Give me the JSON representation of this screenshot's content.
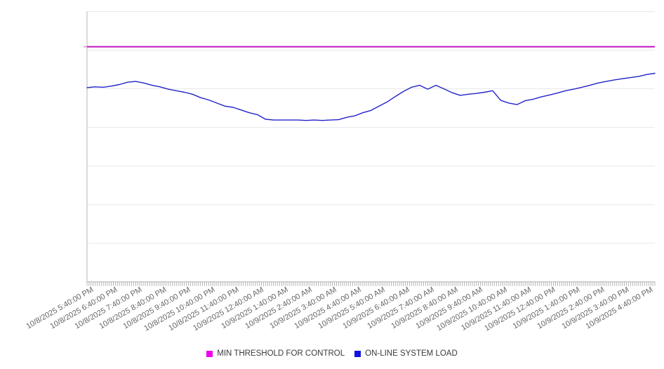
{
  "chart_data": {
    "type": "line",
    "title": "",
    "x_axis": {
      "tick_labels": [
        "10/8/2025 5:40:00 PM",
        "10/8/2025 6:40:00 PM",
        "10/8/2025 7:40:00 PM",
        "10/8/2025 8:40:00 PM",
        "10/8/2025 9:40:00 PM",
        "10/8/2025 10:40:00 PM",
        "10/8/2025 11:40:00 PM",
        "10/9/2025 12:40:00 AM",
        "10/9/2025 1:40:00 AM",
        "10/9/2025 2:40:00 AM",
        "10/9/2025 3:40:00 AM",
        "10/9/2025 4:40:00 AM",
        "10/9/2025 5:40:00 AM",
        "10/9/2025 6:40:00 AM",
        "10/9/2025 7:40:00 AM",
        "10/9/2025 8:40:00 AM",
        "10/9/2025 9:40:00 AM",
        "10/9/2025 10:40:00 AM",
        "10/9/2025 11:40:00 AM",
        "10/9/2025 12:40:00 PM",
        "10/9/2025 1:40:00 PM",
        "10/9/2025 2:40:00 PM",
        "10/9/2025 3:40:00 PM",
        "10/9/2025 4:40:00 PM"
      ],
      "label_interval_minutes": 60,
      "minor_tick_interval_minutes": 5,
      "total_minutes": 1400,
      "label_rotation_deg": -30
    },
    "y_axis": {
      "labels_visible": false,
      "ylim": [
        0,
        7
      ],
      "gridline_step": 1
    },
    "legend_position": "bottom-center",
    "grid": "horizontal-only",
    "series": [
      {
        "name": "MIN THRESHOLD FOR CONTROL",
        "type": "threshold",
        "swatch_color": "#ee00ee",
        "line_color": "#c112c1",
        "value": 6.09
      },
      {
        "name": "ON-LINE SYSTEM LOAD",
        "type": "line",
        "swatch_color": "#1212e0",
        "line_color": "#2323c8",
        "sample_interval_minutes": 20,
        "values": [
          5.03,
          5.05,
          5.04,
          5.07,
          5.11,
          5.17,
          5.19,
          5.15,
          5.09,
          5.05,
          4.99,
          4.95,
          4.91,
          4.86,
          4.77,
          4.71,
          4.63,
          4.55,
          4.52,
          4.45,
          4.38,
          4.33,
          4.21,
          4.19,
          4.19,
          4.19,
          4.19,
          4.18,
          4.19,
          4.18,
          4.19,
          4.2,
          4.26,
          4.3,
          4.38,
          4.44,
          4.55,
          4.66,
          4.8,
          4.93,
          5.04,
          5.09,
          4.99,
          5.09,
          5.0,
          4.9,
          4.83,
          4.86,
          4.88,
          4.91,
          4.95,
          4.7,
          4.63,
          4.59,
          4.69,
          4.73,
          4.79,
          4.84,
          4.89,
          4.95,
          4.99,
          5.04,
          5.09,
          5.15,
          5.19,
          5.23,
          5.26,
          5.29,
          5.32,
          5.37,
          5.4
        ]
      }
    ]
  }
}
